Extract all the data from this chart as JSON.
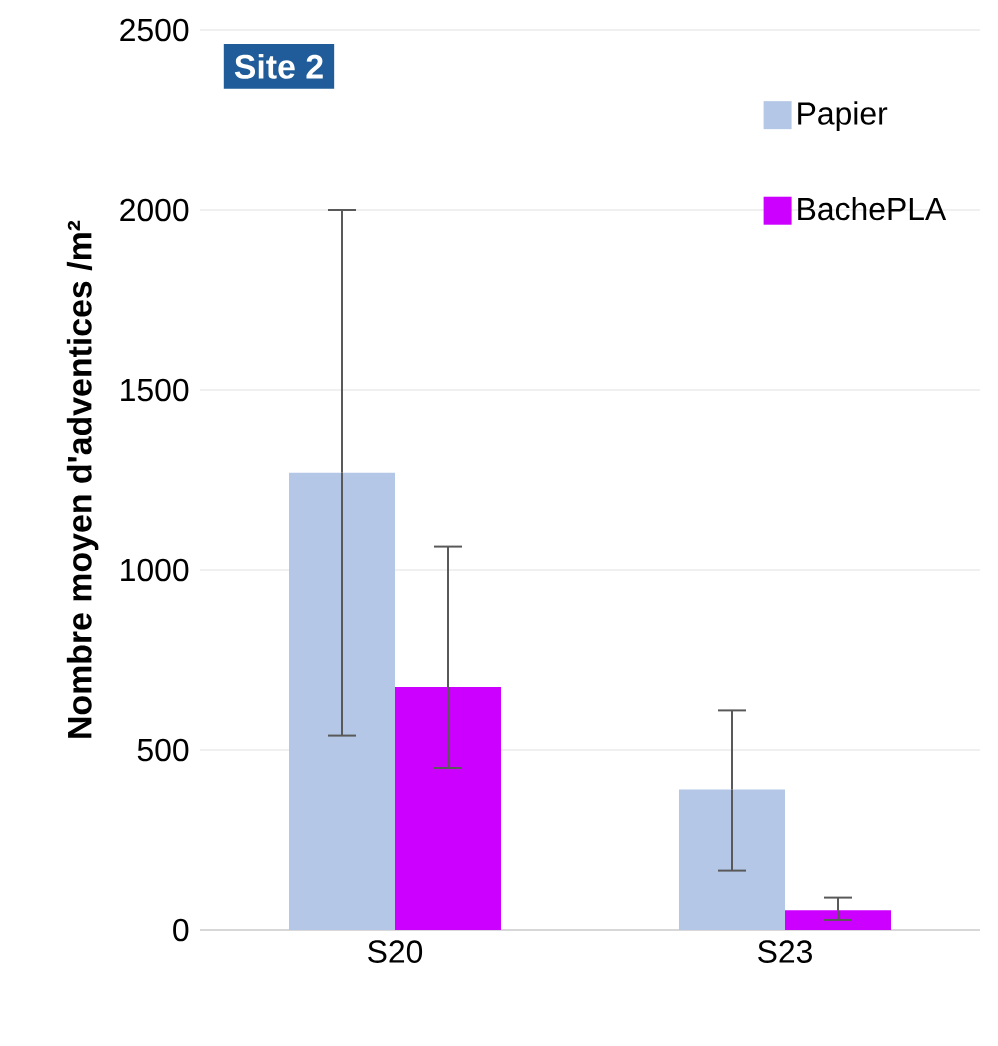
{
  "chart_data": {
    "type": "bar",
    "title": "Site 2",
    "ylabel": "Nombre moyen d'adventices /m²",
    "categories": [
      "S20",
      "S23"
    ],
    "series": [
      {
        "name": "Papier",
        "color": "#b4c7e7",
        "values": [
          1270,
          390
        ],
        "errors": [
          [
            540,
            2000
          ],
          [
            165,
            610
          ]
        ]
      },
      {
        "name": "BachePLA",
        "color": "#cc00ff",
        "values": [
          675,
          55
        ],
        "errors": [
          [
            450,
            1065
          ],
          [
            28,
            90
          ]
        ]
      }
    ],
    "ylim": [
      0,
      2500
    ],
    "yticks": [
      0,
      500,
      1000,
      1500,
      2000,
      2500
    ],
    "grid": "y",
    "legend": "top right"
  }
}
